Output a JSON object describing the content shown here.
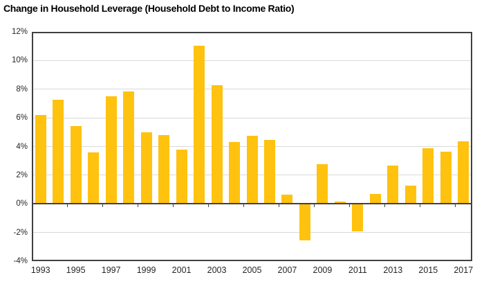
{
  "chart_data": {
    "type": "bar",
    "title": "Change in Household Leverage (Household Debt to Income Ratio)",
    "categories": [
      1993,
      1994,
      1995,
      1996,
      1997,
      1998,
      1999,
      2000,
      2001,
      2002,
      2003,
      2004,
      2005,
      2006,
      2007,
      2008,
      2009,
      2010,
      2011,
      2012,
      2013,
      2014,
      2015,
      2016,
      2017
    ],
    "values": [
      6.2,
      7.25,
      5.45,
      3.6,
      7.5,
      7.85,
      5.0,
      4.8,
      3.8,
      11.05,
      8.3,
      4.3,
      4.75,
      4.45,
      0.65,
      -2.55,
      2.75,
      0.15,
      -1.9,
      0.7,
      2.65,
      1.25,
      3.9,
      3.65,
      4.35
    ],
    "xlabel": "",
    "ylabel": "",
    "ylim": [
      -4,
      12
    ],
    "ytick_step": 2,
    "ytick_suffix": "%",
    "ytick_labels": [
      "12%",
      "10%",
      "8%",
      "6%",
      "4%",
      "2%",
      "0%",
      "-2%",
      "-4%"
    ],
    "xtick_labels": [
      "1993",
      "1995",
      "1997",
      "1999",
      "2001",
      "2003",
      "2005",
      "2007",
      "2009",
      "2011",
      "2013",
      "2015",
      "2017"
    ],
    "x_label_interval": 2,
    "grid": "horizontal",
    "legend_position": "none",
    "colors": {
      "bar": "#FFC20E",
      "gridline": "#d9d9d9",
      "axis": "#404040",
      "tick_text": "#262626",
      "title_text": "#000000",
      "background": "#ffffff"
    }
  }
}
